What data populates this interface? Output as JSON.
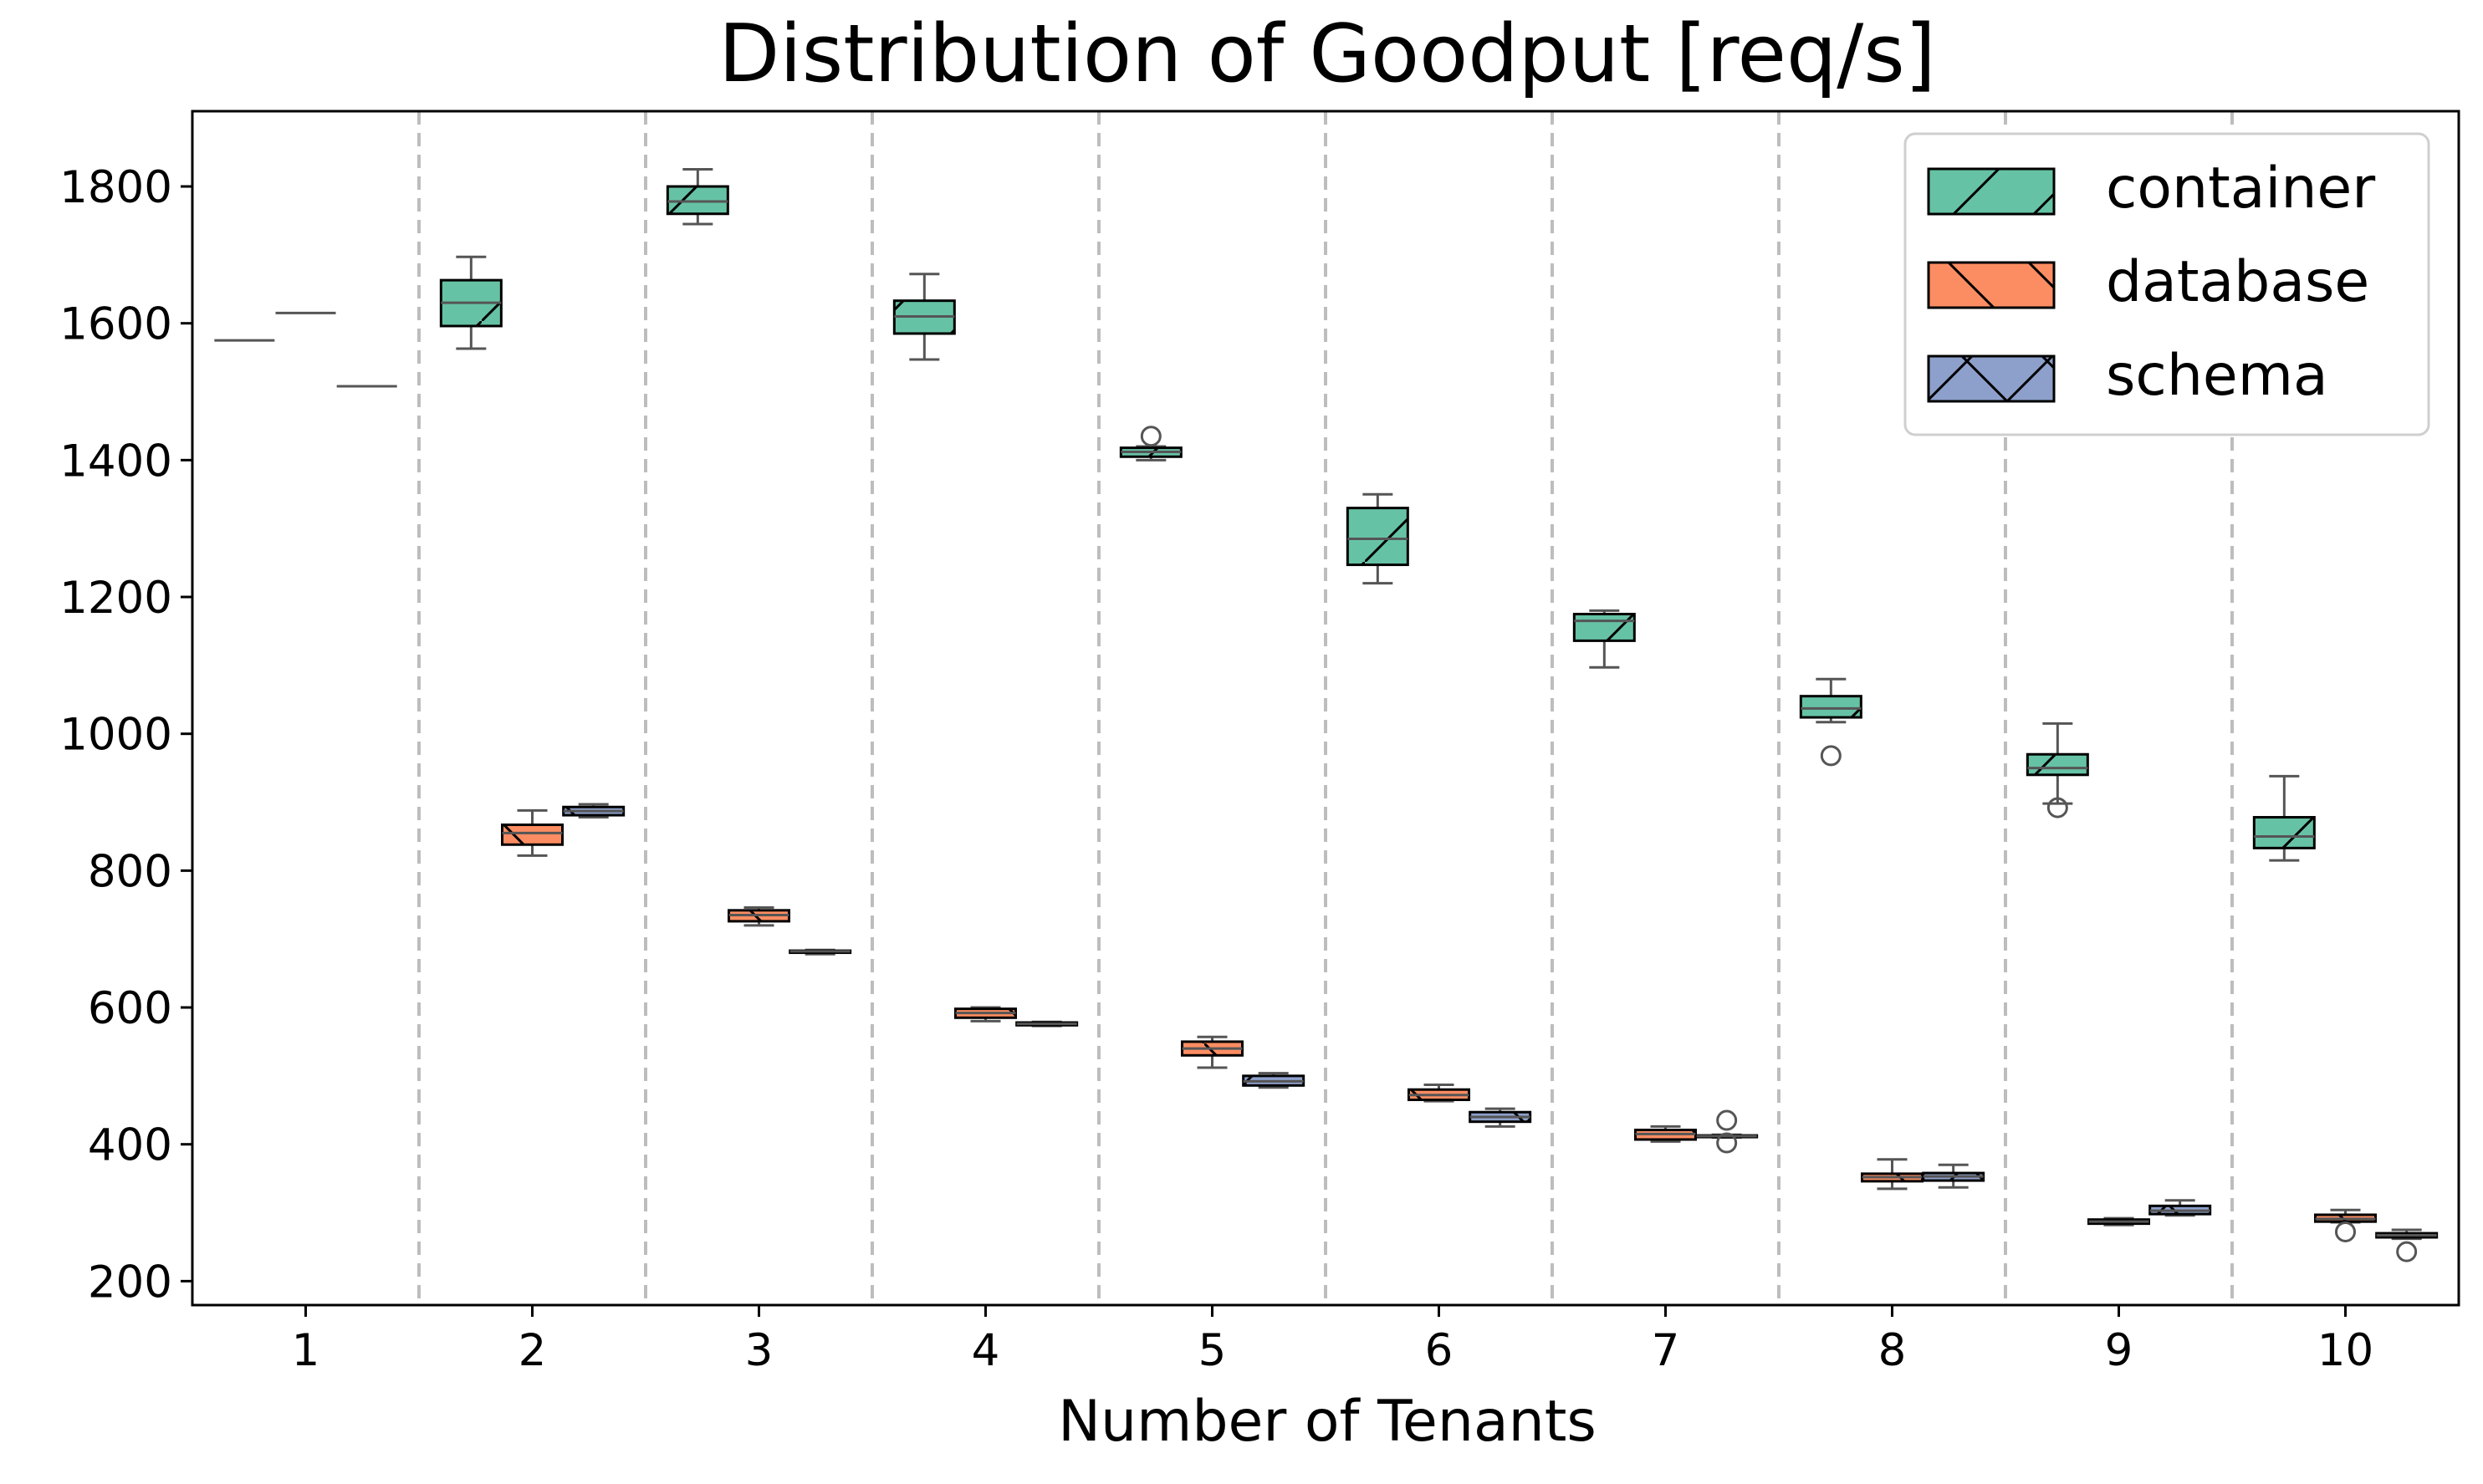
{
  "chart_data": {
    "type": "box",
    "title": "Distribution of Goodput [req/s]",
    "xlabel": "Number of Tenants",
    "ylabel": "",
    "ylim": [
      165,
      1910
    ],
    "yticks": [
      200,
      400,
      600,
      800,
      1000,
      1200,
      1400,
      1600,
      1800
    ],
    "categories": [
      "1",
      "2",
      "3",
      "4",
      "5",
      "6",
      "7",
      "8",
      "9",
      "10"
    ],
    "grid": false,
    "separators": "dashed vertical lines between categories",
    "legend_position": "top-right",
    "series": [
      {
        "name": "container",
        "color": "#66c2a5",
        "hatch": "/",
        "boxes": [
          {
            "whislo": 1575,
            "q1": 1575,
            "med": 1575,
            "q3": 1575,
            "whishi": 1575,
            "fliers": []
          },
          {
            "whislo": 1563,
            "q1": 1596,
            "med": 1630,
            "q3": 1663,
            "whishi": 1697,
            "fliers": []
          },
          {
            "whislo": 1745,
            "q1": 1760,
            "med": 1778,
            "q3": 1800,
            "whishi": 1825,
            "fliers": []
          },
          {
            "whislo": 1547,
            "q1": 1585,
            "med": 1610,
            "q3": 1633,
            "whishi": 1672,
            "fliers": []
          },
          {
            "whislo": 1400,
            "q1": 1405,
            "med": 1412,
            "q3": 1418,
            "whishi": 1420,
            "fliers": [
              1435
            ]
          },
          {
            "whislo": 1220,
            "q1": 1247,
            "med": 1285,
            "q3": 1330,
            "whishi": 1350,
            "fliers": []
          },
          {
            "whislo": 1097,
            "q1": 1136,
            "med": 1165,
            "q3": 1175,
            "whishi": 1180,
            "fliers": []
          },
          {
            "whislo": 1017,
            "q1": 1024,
            "med": 1037,
            "q3": 1055,
            "whishi": 1080,
            "fliers": [
              968
            ]
          },
          {
            "whislo": 898,
            "q1": 940,
            "med": 950,
            "q3": 970,
            "whishi": 1015,
            "fliers": [
              892
            ]
          },
          {
            "whislo": 815,
            "q1": 833,
            "med": 850,
            "q3": 878,
            "whishi": 938,
            "fliers": []
          }
        ]
      },
      {
        "name": "database",
        "color": "#fc8d62",
        "hatch": "\\",
        "boxes": [
          {
            "whislo": 1615,
            "q1": 1615,
            "med": 1615,
            "q3": 1615,
            "whishi": 1615,
            "fliers": []
          },
          {
            "whislo": 822,
            "q1": 838,
            "med": 855,
            "q3": 867,
            "whishi": 888,
            "fliers": []
          },
          {
            "whislo": 720,
            "q1": 726,
            "med": 735,
            "q3": 742,
            "whishi": 746,
            "fliers": []
          },
          {
            "whislo": 580,
            "q1": 585,
            "med": 592,
            "q3": 598,
            "whishi": 600,
            "fliers": []
          },
          {
            "whislo": 512,
            "q1": 530,
            "med": 540,
            "q3": 550,
            "whishi": 557,
            "fliers": []
          },
          {
            "whislo": 463,
            "q1": 465,
            "med": 472,
            "q3": 480,
            "whishi": 487,
            "fliers": []
          },
          {
            "whislo": 404,
            "q1": 407,
            "med": 415,
            "q3": 421,
            "whishi": 426,
            "fliers": []
          },
          {
            "whislo": 335,
            "q1": 346,
            "med": 352,
            "q3": 357,
            "whishi": 378,
            "fliers": []
          },
          {
            "whislo": 282,
            "q1": 284,
            "med": 287,
            "q3": 290,
            "whishi": 292,
            "fliers": []
          },
          {
            "whislo": 286,
            "q1": 287,
            "med": 291,
            "q3": 297,
            "whishi": 304,
            "fliers": [
              272
            ]
          }
        ]
      },
      {
        "name": "schema",
        "color": "#8da0cb",
        "hatch": "x",
        "boxes": [
          {
            "whislo": 1508,
            "q1": 1508,
            "med": 1508,
            "q3": 1508,
            "whishi": 1508,
            "fliers": []
          },
          {
            "whislo": 878,
            "q1": 881,
            "med": 887,
            "q3": 893,
            "whishi": 897,
            "fliers": []
          },
          {
            "whislo": 678,
            "q1": 680,
            "med": 682,
            "q3": 683,
            "whishi": 684,
            "fliers": []
          },
          {
            "whislo": 573,
            "q1": 574,
            "med": 576,
            "q3": 578,
            "whishi": 579,
            "fliers": []
          },
          {
            "whislo": 483,
            "q1": 486,
            "med": 492,
            "q3": 500,
            "whishi": 504,
            "fliers": []
          },
          {
            "whislo": 426,
            "q1": 433,
            "med": 440,
            "q3": 447,
            "whishi": 452,
            "fliers": []
          },
          {
            "whislo": 410,
            "q1": 411,
            "med": 412,
            "q3": 413,
            "whishi": 414,
            "fliers": [
              435,
              402
            ]
          },
          {
            "whislo": 337,
            "q1": 347,
            "med": 353,
            "q3": 358,
            "whishi": 370,
            "fliers": []
          },
          {
            "whislo": 296,
            "q1": 298,
            "med": 303,
            "q3": 310,
            "whishi": 318,
            "fliers": []
          },
          {
            "whislo": 262,
            "q1": 264,
            "med": 267,
            "q3": 270,
            "whishi": 275,
            "fliers": [
              243
            ]
          }
        ]
      }
    ]
  }
}
